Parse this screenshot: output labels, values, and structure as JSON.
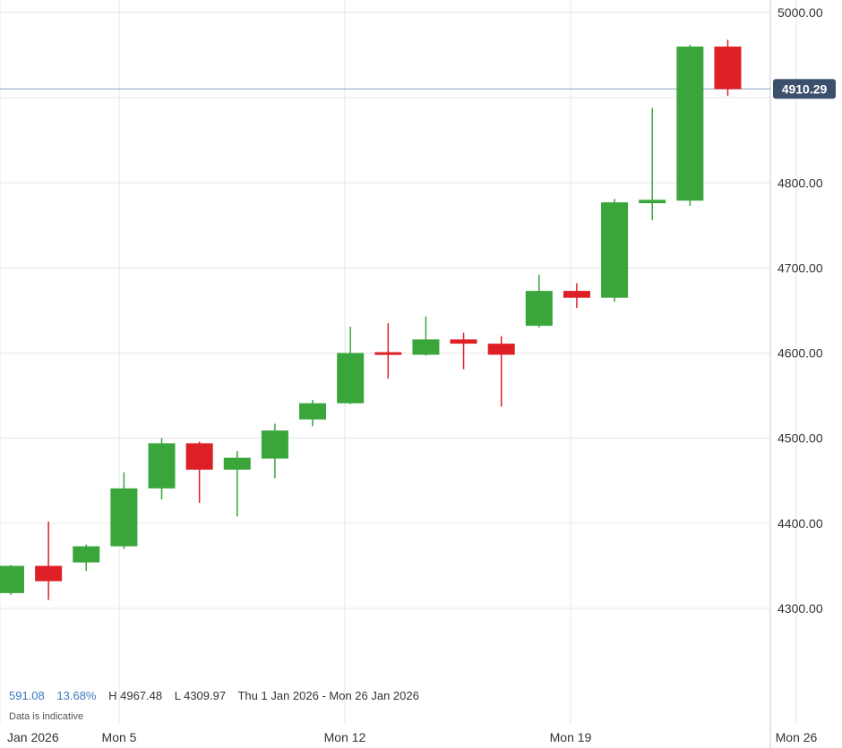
{
  "chart_data": {
    "type": "candlestick",
    "y_axis": {
      "ticks": [
        "5000.00",
        "4800.00",
        "4700.00",
        "4600.00",
        "4500.00",
        "4400.00",
        "4300.00"
      ],
      "tick_values": [
        5000,
        4800,
        4700,
        4600,
        4500,
        4400,
        4300
      ],
      "range": [
        4230,
        5010
      ],
      "position": "right"
    },
    "x_axis": {
      "labels": [
        "Jan 2026",
        "Mon 5",
        "Mon 12",
        "Mon 19",
        "Mon 26"
      ],
      "label_dates": [
        "2026-01-01",
        "2026-01-05",
        "2026-01-12",
        "2026-01-19",
        "2026-01-26"
      ]
    },
    "grid": true,
    "current_price": {
      "value": 4910.29,
      "label": "4910.29"
    },
    "candles": [
      {
        "date": "2026-01-01",
        "open": 4318,
        "high": 4351,
        "low": 4316,
        "close": 4350
      },
      {
        "date": "2026-01-02",
        "open": 4350,
        "high": 4402,
        "low": 4310,
        "close": 4332
      },
      {
        "date": "2026-01-05",
        "open": 4354,
        "high": 4375,
        "low": 4344,
        "close": 4373
      },
      {
        "date": "2026-01-06",
        "open": 4373,
        "high": 4460,
        "low": 4370,
        "close": 4441
      },
      {
        "date": "2026-01-07",
        "open": 4441,
        "high": 4500,
        "low": 4428,
        "close": 4494
      },
      {
        "date": "2026-01-08",
        "open": 4494,
        "high": 4496,
        "low": 4424,
        "close": 4463
      },
      {
        "date": "2026-01-09",
        "open": 4463,
        "high": 4485,
        "low": 4408,
        "close": 4477
      },
      {
        "date": "2026-01-12",
        "open": 4476,
        "high": 4517,
        "low": 4453,
        "close": 4509
      },
      {
        "date": "2026-01-13",
        "open": 4522,
        "high": 4545,
        "low": 4514,
        "close": 4541
      },
      {
        "date": "2026-01-14",
        "open": 4541,
        "high": 4631,
        "low": 4540,
        "close": 4600
      },
      {
        "date": "2026-01-15",
        "open": 4601,
        "high": 4635,
        "low": 4570,
        "close": 4598
      },
      {
        "date": "2026-01-16",
        "open": 4598,
        "high": 4643,
        "low": 4597,
        "close": 4616
      },
      {
        "date": "2026-01-19",
        "open": 4616,
        "high": 4624,
        "low": 4581,
        "close": 4611
      },
      {
        "date": "2026-01-20",
        "open": 4611,
        "high": 4620,
        "low": 4537,
        "close": 4598
      },
      {
        "date": "2026-01-21",
        "open": 4632,
        "high": 4692,
        "low": 4630,
        "close": 4673
      },
      {
        "date": "2026-01-22",
        "open": 4673,
        "high": 4682,
        "low": 4653,
        "close": 4665
      },
      {
        "date": "2026-01-23",
        "open": 4665,
        "high": 4781,
        "low": 4660,
        "close": 4777
      },
      {
        "date": "2026-01-26a",
        "open": 4776,
        "high": 4888,
        "low": 4756,
        "close": 4780
      },
      {
        "date": "2026-01-26b",
        "open": 4779,
        "high": 4962,
        "low": 4773,
        "close": 4960
      },
      {
        "date": "2026-01-27",
        "open": 4960,
        "high": 4968,
        "low": 4902,
        "close": 4910
      }
    ],
    "colors": {
      "up": "#3aa53a",
      "down": "#dd1f26",
      "grid": "#e6e6e6",
      "price_line": "#8ea3bb",
      "price_tag": "#3c4f6b"
    }
  },
  "stats": {
    "change": "591.08",
    "change_pct": "13.68%",
    "high": "H 4967.48",
    "low": "L 4309.97",
    "range": "Thu 1 Jan 2026 - Mon 26 Jan 2026"
  },
  "note": "Data is indicative"
}
